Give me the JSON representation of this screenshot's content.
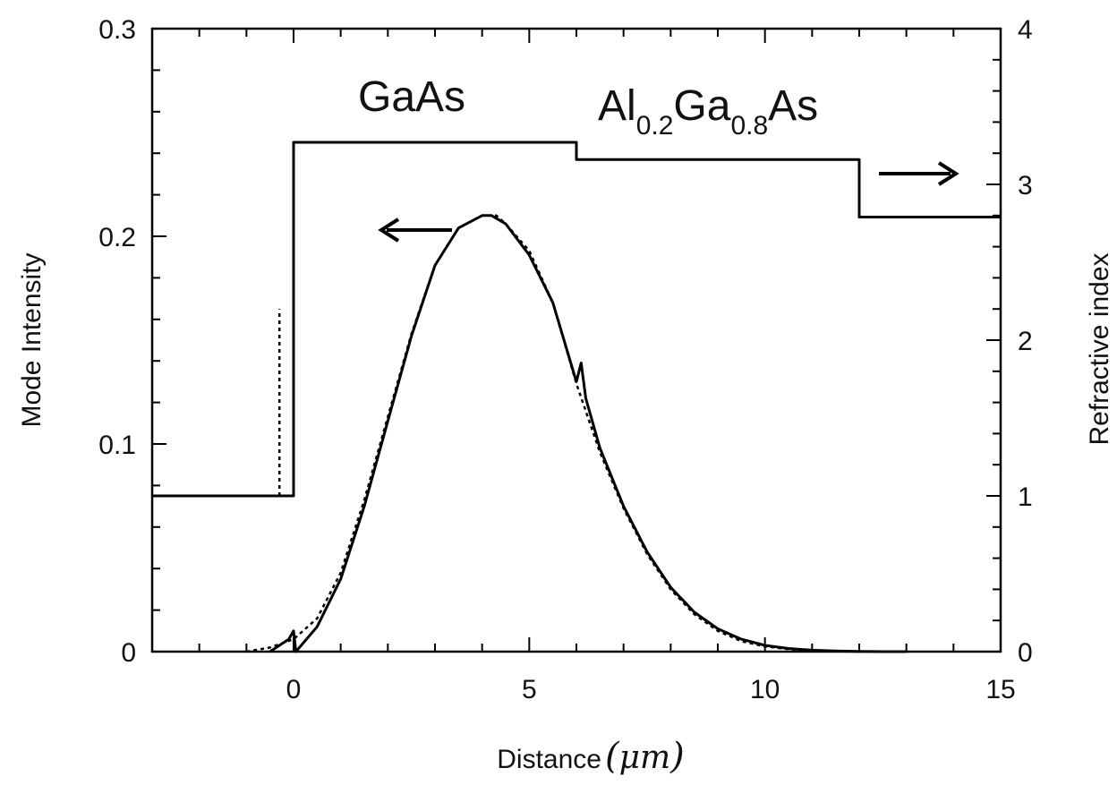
{
  "chart_data": {
    "type": "line",
    "xlabel": "Distance",
    "xlabel_unit": "μm",
    "ylabel": "Mode Intensity",
    "y2label": "Refractive index",
    "xlim": [
      -3,
      15
    ],
    "ylim": [
      0,
      0.3
    ],
    "y2lim": [
      0,
      4
    ],
    "x_ticks": [
      "0",
      "5",
      "10",
      "15"
    ],
    "y_ticks": [
      "0",
      "0.1",
      "0.2",
      "0.3"
    ],
    "y2_ticks": [
      "0",
      "1",
      "2",
      "3",
      "4"
    ],
    "grid": false,
    "annotations": {
      "material_left": "GaAs",
      "material_right_parts": [
        "Al",
        "0.2",
        "Ga",
        "0.8",
        "As"
      ],
      "arrow_left_axis": "←",
      "arrow_right_axis": "→"
    },
    "series": [
      {
        "axis": "right",
        "style": "solid",
        "x": [
          -3,
          0,
          0,
          6,
          6,
          12,
          12,
          15
        ],
        "y": [
          1.0,
          1.0,
          3.27,
          3.27,
          3.16,
          3.16,
          2.79,
          2.79
        ]
      },
      {
        "axis": "right",
        "style": "dotted",
        "x": [
          -0.3,
          -0.3
        ],
        "y": [
          1.0,
          2.2
        ]
      },
      {
        "axis": "left",
        "style": "solid",
        "x": [
          -0.5,
          -0.3,
          -0.1,
          0.0,
          0.05,
          0.5,
          1.0,
          1.5,
          2.0,
          2.5,
          3.0,
          3.5,
          4.0,
          4.2,
          4.5,
          5.0,
          5.5,
          6.0,
          6.1,
          6.2,
          6.5,
          7.0,
          7.5,
          8.0,
          8.5,
          9.0,
          9.5,
          10.0,
          10.5,
          11.0,
          11.5,
          12.0,
          12.5,
          13.0
        ],
        "y": [
          0.0,
          0.003,
          0.006,
          0.01,
          0.0,
          0.012,
          0.035,
          0.07,
          0.111,
          0.152,
          0.186,
          0.204,
          0.21,
          0.21,
          0.206,
          0.191,
          0.168,
          0.13,
          0.139,
          0.122,
          0.098,
          0.07,
          0.048,
          0.031,
          0.019,
          0.011,
          0.006,
          0.003,
          0.0015,
          0.0007,
          0.0003,
          0.0001,
          0.0,
          0.0
        ]
      },
      {
        "axis": "left",
        "style": "dotted",
        "x": [
          -1.0,
          -0.5,
          0.0,
          0.5,
          1.0,
          1.5,
          2.0,
          2.5,
          3.0,
          3.5,
          4.0,
          4.3,
          4.5,
          5.0,
          5.5,
          6.0,
          6.5,
          7.0,
          7.5,
          8.0,
          8.5,
          9.0,
          9.5,
          10.0,
          10.5,
          11.0,
          11.5,
          12.0
        ],
        "y": [
          0.0,
          0.002,
          0.006,
          0.016,
          0.038,
          0.073,
          0.113,
          0.153,
          0.186,
          0.204,
          0.21,
          0.21,
          0.206,
          0.193,
          0.168,
          0.129,
          0.096,
          0.069,
          0.047,
          0.03,
          0.018,
          0.01,
          0.005,
          0.0025,
          0.0012,
          0.0005,
          0.0002,
          0.0
        ]
      }
    ]
  }
}
